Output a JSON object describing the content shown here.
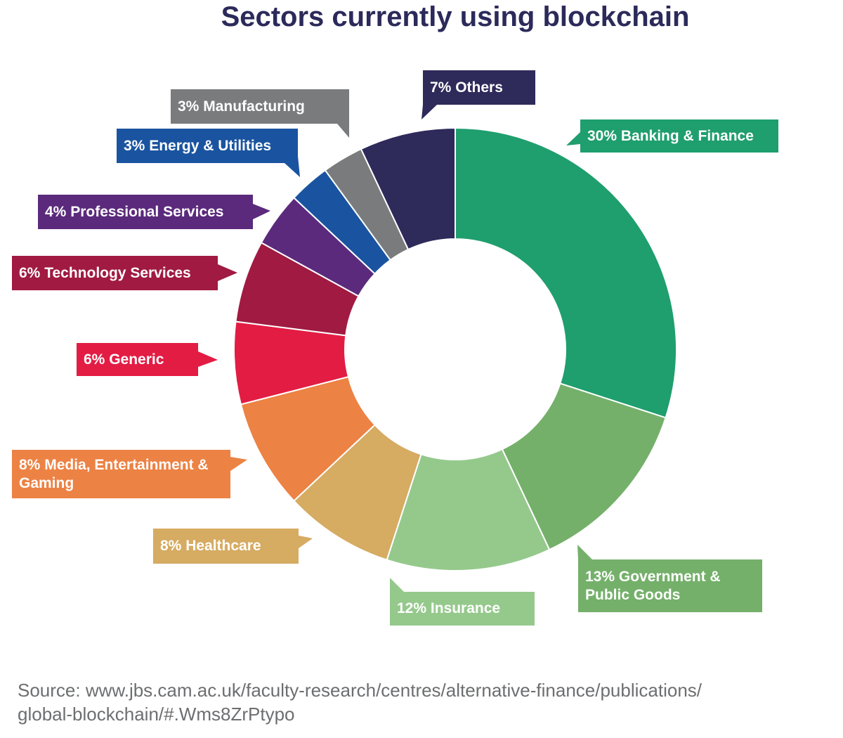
{
  "chart_data": {
    "type": "donut",
    "title": "Sectors currently using blockchain",
    "categories": [
      "Banking & Finance",
      "Government & Public Goods",
      "Insurance",
      "Healthcare",
      "Media, Entertainment & Gaming",
      "Generic",
      "Technology Services",
      "Professional Services",
      "Energy & Utilities",
      "Manufacturing",
      "Others"
    ],
    "values": [
      30,
      13,
      12,
      8,
      8,
      6,
      6,
      4,
      3,
      3,
      7
    ],
    "value_labels": [
      "30%",
      "13%",
      "12%",
      "8%",
      "8%",
      "6%",
      "6%",
      "4%",
      "3%",
      "3%",
      "7%"
    ],
    "colors": [
      "#1f9e6e",
      "#74b06a",
      "#95c98c",
      "#d6ab62",
      "#ec8244",
      "#e31c44",
      "#a01a42",
      "#5b2a7c",
      "#1a54a0",
      "#7a7b7d",
      "#2e2a5a"
    ],
    "source": [
      "Source: www.jbs.cam.ac.uk/faculty-research/centres/alternative-finance/publications/",
      "global-blockchain/#.Wms8ZrPtypo"
    ]
  }
}
